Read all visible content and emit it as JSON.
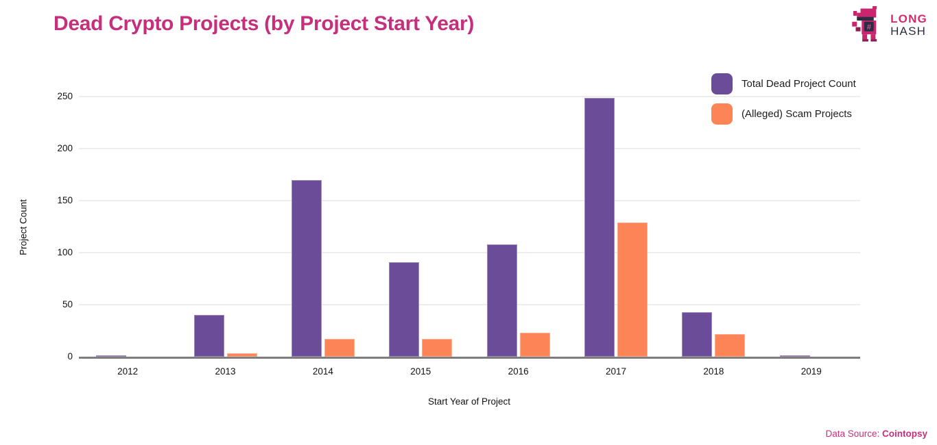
{
  "header": {
    "title": "Dead Crypto Projects (by Project Start Year)",
    "logo": {
      "word1": "LONG",
      "word2": "HASH",
      "hash_glyph": "#"
    }
  },
  "chart_data": {
    "type": "bar",
    "title": "Dead Crypto Projects (by Project Start Year)",
    "xlabel": "Start Year of Project",
    "ylabel": "Project Count",
    "categories": [
      "2012",
      "2013",
      "2014",
      "2015",
      "2016",
      "2017",
      "2018",
      "2019"
    ],
    "series": [
      {
        "name": "Total Dead Project Count",
        "color": "#6a4c99",
        "values": [
          1,
          40,
          170,
          91,
          108,
          249,
          43,
          1
        ]
      },
      {
        "name": "(Alleged) Scam Projects",
        "color": "#fd8457",
        "values": [
          0,
          3,
          17,
          17,
          23,
          129,
          22,
          0
        ]
      }
    ],
    "ylim": [
      0,
      250
    ],
    "yticks": [
      0,
      50,
      100,
      150,
      200,
      250
    ],
    "grid": true,
    "legend_position": "top-right"
  },
  "footer": {
    "prefix": "Data Source: ",
    "source": "Cointopsy"
  },
  "colors": {
    "accent_pink": "#c62f7c",
    "bar_purple": "#6a4c99",
    "bar_orange": "#fd8457",
    "axis_line": "#7d7d7d",
    "gridline": "#ededed",
    "logo_pink": "#c9266f",
    "logo_dark_pink": "#8f1b53",
    "logo_navy": "#2b2d42"
  }
}
